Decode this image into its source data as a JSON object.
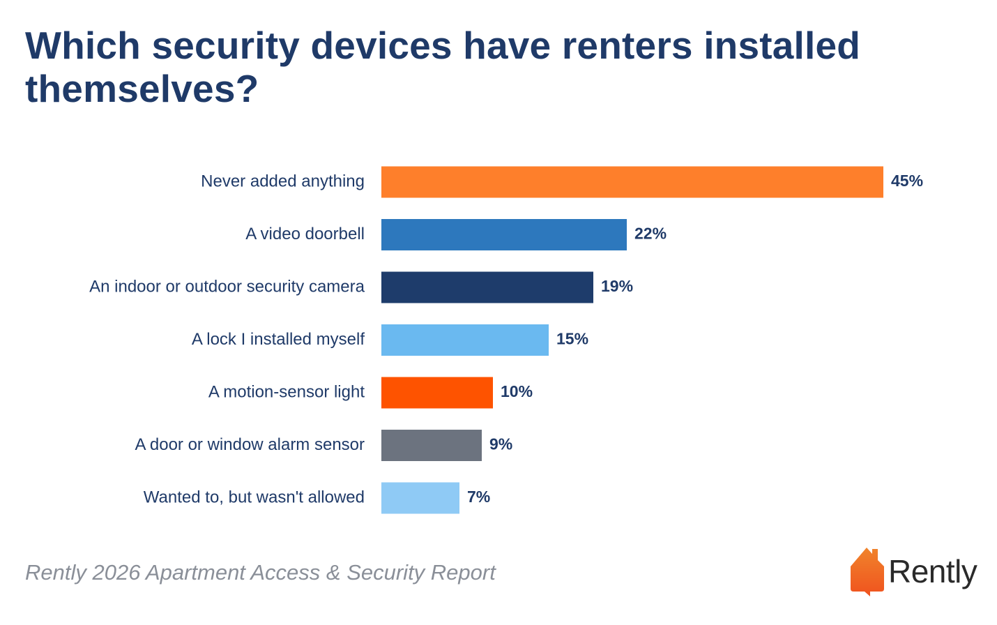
{
  "title": "Which security devices have renters installed themselves?",
  "source": "Rently 2026 Apartment Access & Security Report",
  "logo": {
    "text": "Rently",
    "icon": "house-speech-bubble-icon",
    "icon_color_top": "#f0842c",
    "icon_color_bottom": "#f0521e"
  },
  "chart_data": {
    "type": "bar",
    "orientation": "horizontal",
    "categories": [
      "Never added anything",
      "A video doorbell",
      "An indoor or outdoor security camera",
      "A lock I installed myself",
      "A motion-sensor light",
      "A door or window alarm sensor",
      "Wanted to, but wasn't allowed"
    ],
    "values": [
      45,
      22,
      19,
      15,
      10,
      9,
      7
    ],
    "value_labels": [
      "45%",
      "22%",
      "19%",
      "15%",
      "10%",
      "9%",
      "7%"
    ],
    "colors": [
      "#fe7f2b",
      "#2d78bd",
      "#1e3c6b",
      "#6ab9f0",
      "#fe5300",
      "#6c737f",
      "#8fcaf5"
    ],
    "xlim": [
      0,
      45
    ],
    "grid": false,
    "legend": "none"
  }
}
